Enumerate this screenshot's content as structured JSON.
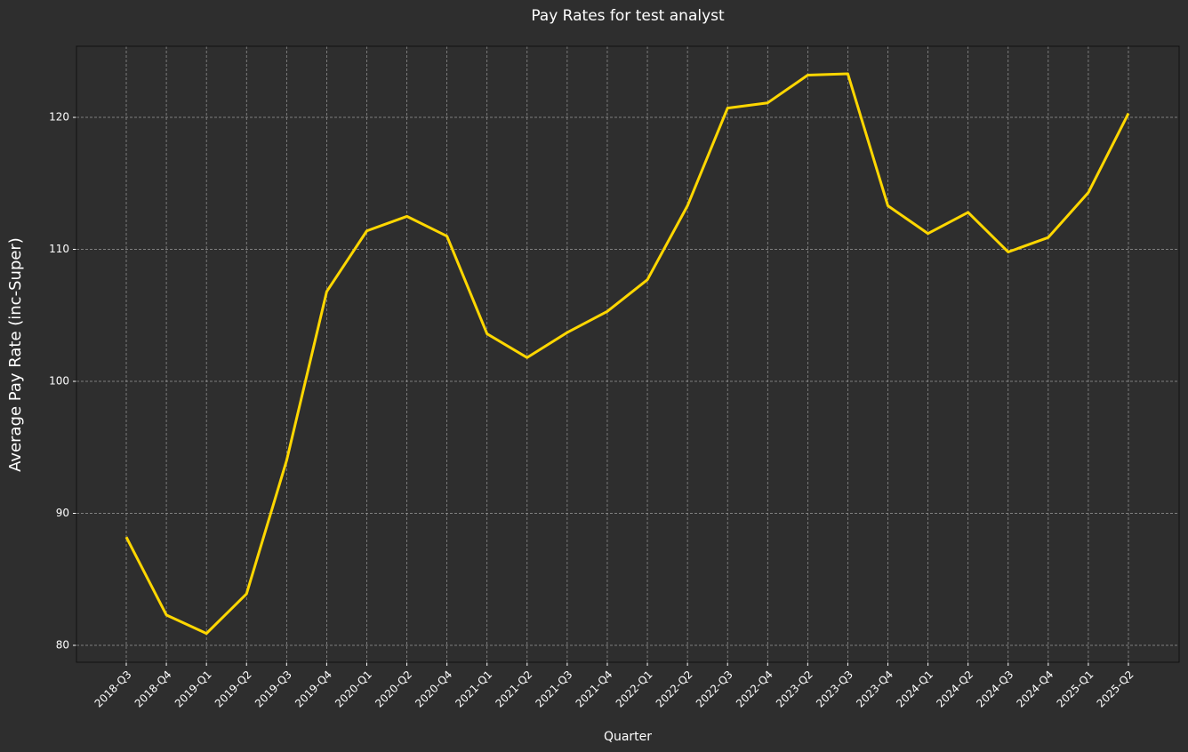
{
  "chart_data": {
    "type": "line",
    "title": "Pay Rates for test analyst",
    "x_label": "Quarter",
    "y_label": "Average Pay Rate (inc-Super)",
    "categories": [
      "2018-Q3",
      "2018-Q4",
      "2019-Q1",
      "2019-Q2",
      "2019-Q3",
      "2019-Q4",
      "2020-Q1",
      "2020-Q2",
      "2020-Q4",
      "2021-Q1",
      "2021-Q2",
      "2021-Q3",
      "2021-Q4",
      "2022-Q1",
      "2022-Q2",
      "2022-Q3",
      "2022-Q4",
      "2023-Q2",
      "2023-Q3",
      "2023-Q4",
      "2024-Q1",
      "2024-Q2",
      "2024-Q3",
      "2024-Q4",
      "2025-Q1",
      "2025-Q2"
    ],
    "series": [
      {
        "name": "Average Pay Rate (inc-Super)",
        "color": "#ffd700",
        "values": [
          88.2,
          82.3,
          80.9,
          83.9,
          94.0,
          106.8,
          111.4,
          112.5,
          111.0,
          103.6,
          101.8,
          103.7,
          105.3,
          107.7,
          113.3,
          120.7,
          121.1,
          123.2,
          123.3,
          113.3,
          111.2,
          112.8,
          109.8,
          110.9,
          114.3,
          120.3
        ]
      }
    ],
    "ylim": [
      78.72,
      125.39
    ],
    "yticks": [
      80,
      90,
      100,
      110,
      120
    ],
    "grid": true
  }
}
